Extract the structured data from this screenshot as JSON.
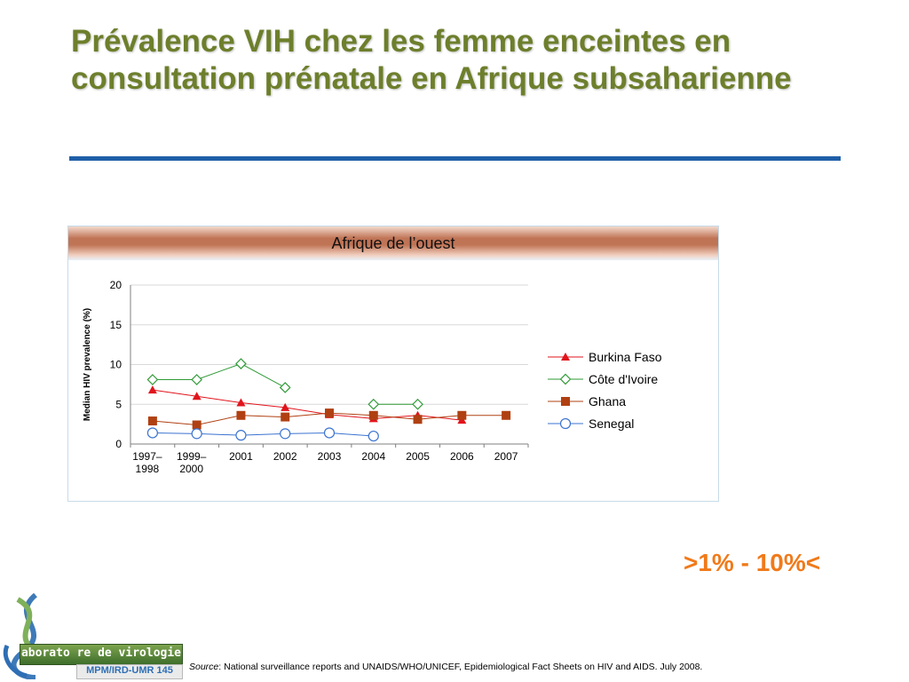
{
  "slide": {
    "title": "Prévalence VIH chez les femme enceintes en consultation prénatale en Afrique subsaharienne",
    "range_note": ">1% - 10%<",
    "source_label": "Source",
    "source_text": ": National surveillance reports and UNAIDS/WHO/UNICEF, Epidemiological Fact Sheets on HIV and AIDS.  July 2008.",
    "logo_banner": "aborato  re de virologie",
    "logo_sub": "MPM/IRD-UMR 145",
    "colors": {
      "title": "#6d7f2c",
      "rule": "#1f5fa8",
      "range_note": "#f07a1a"
    }
  },
  "chart_data": {
    "type": "line",
    "title": "Afrique de l’ouest",
    "ylabel": "Median HIV prevalence (%)",
    "xlabel": "",
    "ylim": [
      0,
      20
    ],
    "yticks": [
      0,
      5,
      10,
      15,
      20
    ],
    "grid": true,
    "legend": "right",
    "categories": [
      "1997–1998",
      "1999–2000",
      "2001",
      "2002",
      "2003",
      "2004",
      "2005",
      "2006",
      "2007"
    ],
    "series": [
      {
        "name": "Burkina Faso",
        "color": "#e1141c",
        "marker": "triangle",
        "values": [
          6.8,
          6.0,
          5.2,
          4.6,
          3.7,
          3.2,
          3.6,
          3.0,
          null
        ]
      },
      {
        "name": "Côte d'Ivoire",
        "color": "#2f9a36",
        "marker": "diamond",
        "values": [
          8.1,
          8.1,
          10.1,
          7.1,
          null,
          5.0,
          5.0,
          null,
          null
        ]
      },
      {
        "name": "Ghana",
        "color": "#b04012",
        "marker": "square",
        "values": [
          2.9,
          2.4,
          3.6,
          3.4,
          3.9,
          3.6,
          3.1,
          3.6,
          3.6
        ]
      },
      {
        "name": "Senegal",
        "color": "#3b73d0",
        "marker": "circle",
        "values": [
          1.4,
          1.3,
          1.1,
          1.3,
          1.4,
          1.0,
          null,
          null,
          null
        ]
      }
    ]
  }
}
